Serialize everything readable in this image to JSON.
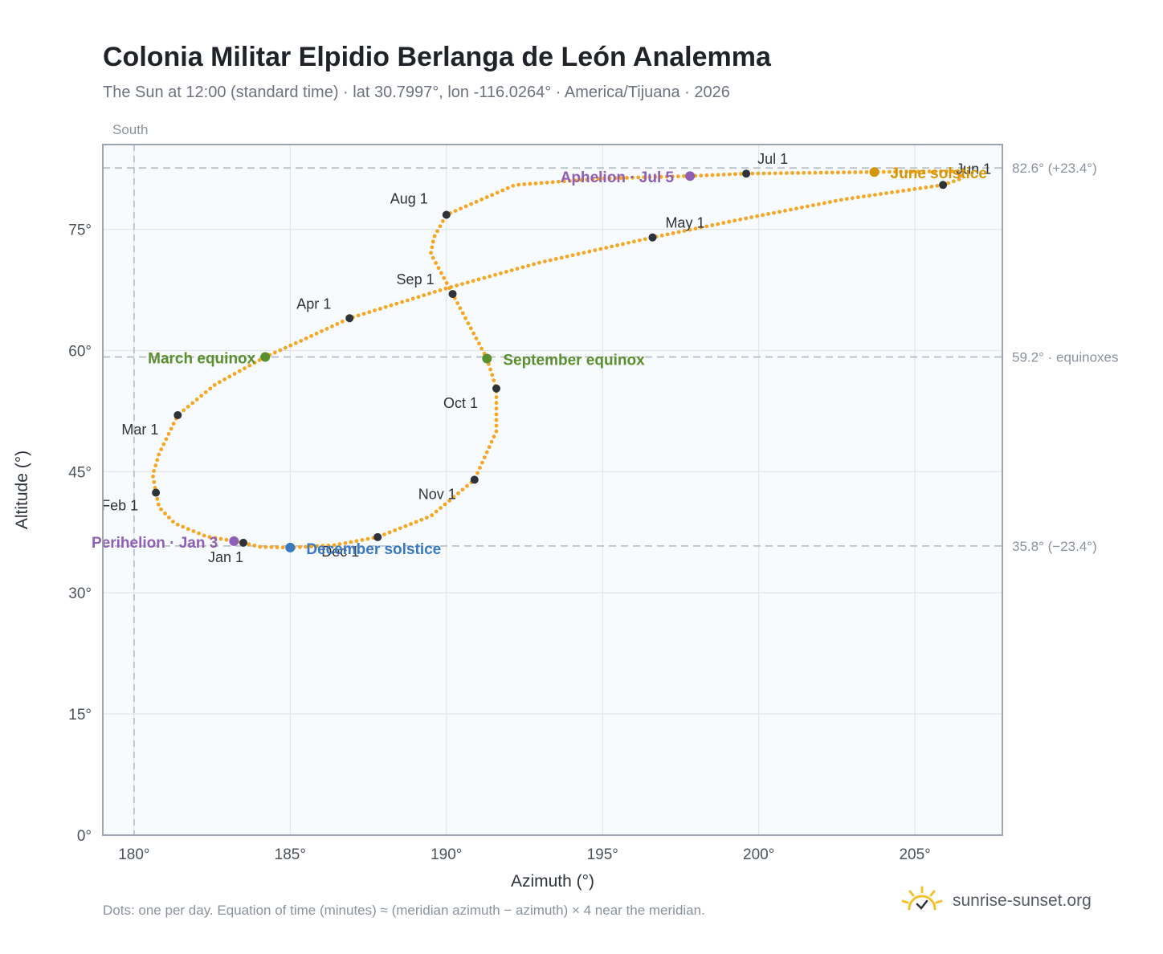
{
  "title": "Colonia Militar Elpidio Berlanga de León Analemma",
  "subtitle": "The Sun at 12:00 (standard time) · lat 30.7997°, lon -116.0264° · America/Tijuana · 2026",
  "footnote": "Dots: one per day. Equation of time (minutes) ≈ (meridian azimuth − azimuth) × 4 near the meridian.",
  "brand": {
    "name": "sunrise-sunset.org",
    "icon": "sun-logo-icon"
  },
  "colors": {
    "analemma": "#f5a623",
    "month_dot": "#2d3339",
    "equinox": "#5a8f2e",
    "june_solstice": "#d4960a",
    "december_solstice": "#3a78c2",
    "apsis": "#8e5fb5",
    "plot_bg": "#f8fbfd",
    "grid": "#e1e6ea",
    "ref_line": "#b9c1c9"
  },
  "chart_data": {
    "type": "scatter",
    "title": "Colonia Militar Elpidio Berlanga de León Analemma",
    "xlabel": "Azimuth (°)",
    "ylabel": "Altitude (°)",
    "xlim": [
      179.0,
      207.8
    ],
    "ylim": [
      0,
      85.5
    ],
    "x_ticks": [
      180,
      185,
      190,
      195,
      200,
      205
    ],
    "x_tick_labels": [
      "180°",
      "185°",
      "190°",
      "195°",
      "200°",
      "205°"
    ],
    "y_ticks": [
      0,
      15,
      30,
      45,
      60,
      75
    ],
    "y_tick_labels": [
      "0°",
      "15°",
      "30°",
      "45°",
      "60°",
      "75°"
    ],
    "grid": true,
    "meridian": {
      "azimuth": 180,
      "label": "South"
    },
    "reference_lines": [
      {
        "altitude": 82.6,
        "label": "82.6° (+23.4°)"
      },
      {
        "altitude": 59.2,
        "label": "59.2° · equinoxes"
      },
      {
        "altitude": 35.8,
        "label": "35.8° (−23.4°)"
      }
    ],
    "analemma_path": [
      [
        183.5,
        36.2
      ],
      [
        182.3,
        37.0
      ],
      [
        181.3,
        38.6
      ],
      [
        180.8,
        40.6
      ],
      [
        180.7,
        42.4
      ],
      [
        180.6,
        44.6
      ],
      [
        180.8,
        47.2
      ],
      [
        181.4,
        52.0
      ],
      [
        182.6,
        55.8
      ],
      [
        184.2,
        59.2
      ],
      [
        185.4,
        61.3
      ],
      [
        186.9,
        64.0
      ],
      [
        190.0,
        67.7
      ],
      [
        193.0,
        70.9
      ],
      [
        196.6,
        74.0
      ],
      [
        199.5,
        76.3
      ],
      [
        202.7,
        78.7
      ],
      [
        205.9,
        80.5
      ],
      [
        206.5,
        81.3
      ],
      [
        206.4,
        82.2
      ],
      [
        203.7,
        82.1
      ],
      [
        199.6,
        81.9
      ],
      [
        197.8,
        81.6
      ],
      [
        195.0,
        81.3
      ],
      [
        192.2,
        80.5
      ],
      [
        190.0,
        76.8
      ],
      [
        189.6,
        74.0
      ],
      [
        189.5,
        72.0
      ],
      [
        190.2,
        67.0
      ],
      [
        191.3,
        59.0
      ],
      [
        191.6,
        55.3
      ],
      [
        191.6,
        50.0
      ],
      [
        190.9,
        44.0
      ],
      [
        189.5,
        39.5
      ],
      [
        187.8,
        36.9
      ],
      [
        186.4,
        35.9
      ],
      [
        185.0,
        35.6
      ],
      [
        184.0,
        35.7
      ],
      [
        183.5,
        36.2
      ]
    ],
    "month_markers": [
      {
        "label": "Jan 1",
        "az": 183.5,
        "alt": 36.2
      },
      {
        "label": "Feb 1",
        "az": 180.7,
        "alt": 42.4
      },
      {
        "label": "Mar 1",
        "az": 181.4,
        "alt": 52.0
      },
      {
        "label": "Apr 1",
        "az": 186.9,
        "alt": 64.0
      },
      {
        "label": "May 1",
        "az": 196.6,
        "alt": 74.0
      },
      {
        "label": "Jun 1",
        "az": 205.9,
        "alt": 80.5
      },
      {
        "label": "Jul 1",
        "az": 199.6,
        "alt": 81.9
      },
      {
        "label": "Aug 1",
        "az": 190.0,
        "alt": 76.8
      },
      {
        "label": "Sep 1",
        "az": 190.2,
        "alt": 67.0
      },
      {
        "label": "Oct 1",
        "az": 191.6,
        "alt": 55.3
      },
      {
        "label": "Nov 1",
        "az": 190.9,
        "alt": 44.0
      },
      {
        "label": "Dec 1",
        "az": 187.8,
        "alt": 36.9
      }
    ],
    "events": [
      {
        "label": "March equinox",
        "az": 184.2,
        "alt": 59.2,
        "kind": "equinox"
      },
      {
        "label": "September equinox",
        "az": 191.3,
        "alt": 59.0,
        "kind": "equinox"
      },
      {
        "label": "June solstice",
        "az": 203.7,
        "alt": 82.1,
        "kind": "june_solstice"
      },
      {
        "label": "December solstice",
        "az": 185.0,
        "alt": 35.6,
        "kind": "december_solstice"
      },
      {
        "label": "Perihelion · Jan 3",
        "az": 183.2,
        "alt": 36.4,
        "kind": "apsis"
      },
      {
        "label": "Aphelion · Jul 5",
        "az": 197.8,
        "alt": 81.6,
        "kind": "apsis"
      }
    ]
  }
}
